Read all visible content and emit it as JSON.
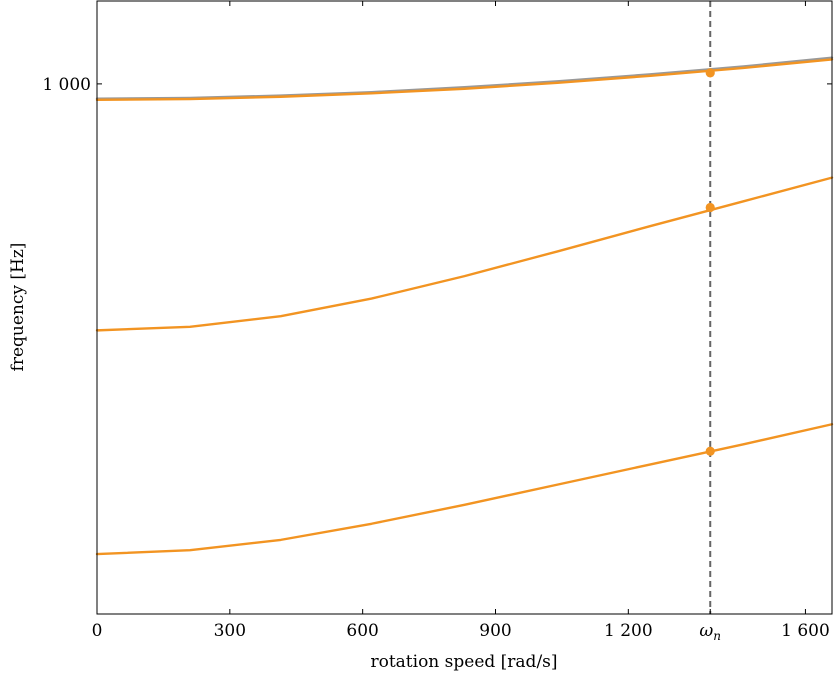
{
  "chart_data": {
    "type": "line",
    "xlabel": "rotation speed [rad/s]",
    "ylabel": "frequency [Hz]",
    "xlim": [
      0,
      1660
    ],
    "ylim_log": [
      240,
      1250
    ],
    "log_y": true,
    "grid": false,
    "x_ticks": [
      {
        "value": 0,
        "label": "0"
      },
      {
        "value": 300,
        "label": "300"
      },
      {
        "value": 600,
        "label": "600"
      },
      {
        "value": 900,
        "label": "900"
      },
      {
        "value": 1200,
        "label": "1 200"
      },
      {
        "value": 1600,
        "label": "1 600"
      }
    ],
    "y_ticks": [
      {
        "value": 1000,
        "label": "1 000"
      }
    ],
    "marker_line": {
      "x": 1385,
      "label": "ω",
      "subscript": "n"
    },
    "x": [
      0,
      210,
      415,
      620,
      830,
      1040,
      1250,
      1460,
      1660
    ],
    "series": [
      {
        "color": "#f29422",
        "values": [
          282,
          285,
          293,
          306,
          322,
          340,
          359,
          379,
          400
        ]
      },
      {
        "color": "#f29422",
        "values": [
          515,
          520,
          535,
          561,
          596,
          637,
          682,
          729,
          777
        ]
      },
      {
        "color": "#f29422",
        "values": [
          958,
          960,
          966,
          975,
          987,
          1003,
          1022,
          1044,
          1068
        ]
      },
      {
        "color": "#999999",
        "values": [
          961,
          963,
          969,
          978,
          991,
          1007,
          1026,
          1048,
          1073
        ]
      }
    ],
    "markers": [
      {
        "x": 1385,
        "y": 372,
        "color": "#f29422"
      },
      {
        "x": 1385,
        "y": 717,
        "color": "#f29422"
      },
      {
        "x": 1385,
        "y": 1030,
        "color": "#f29422"
      }
    ],
    "colors": {
      "orange": "#f29422",
      "gray": "#999999",
      "dashed_line": "#666666",
      "axis": "#000000"
    }
  }
}
